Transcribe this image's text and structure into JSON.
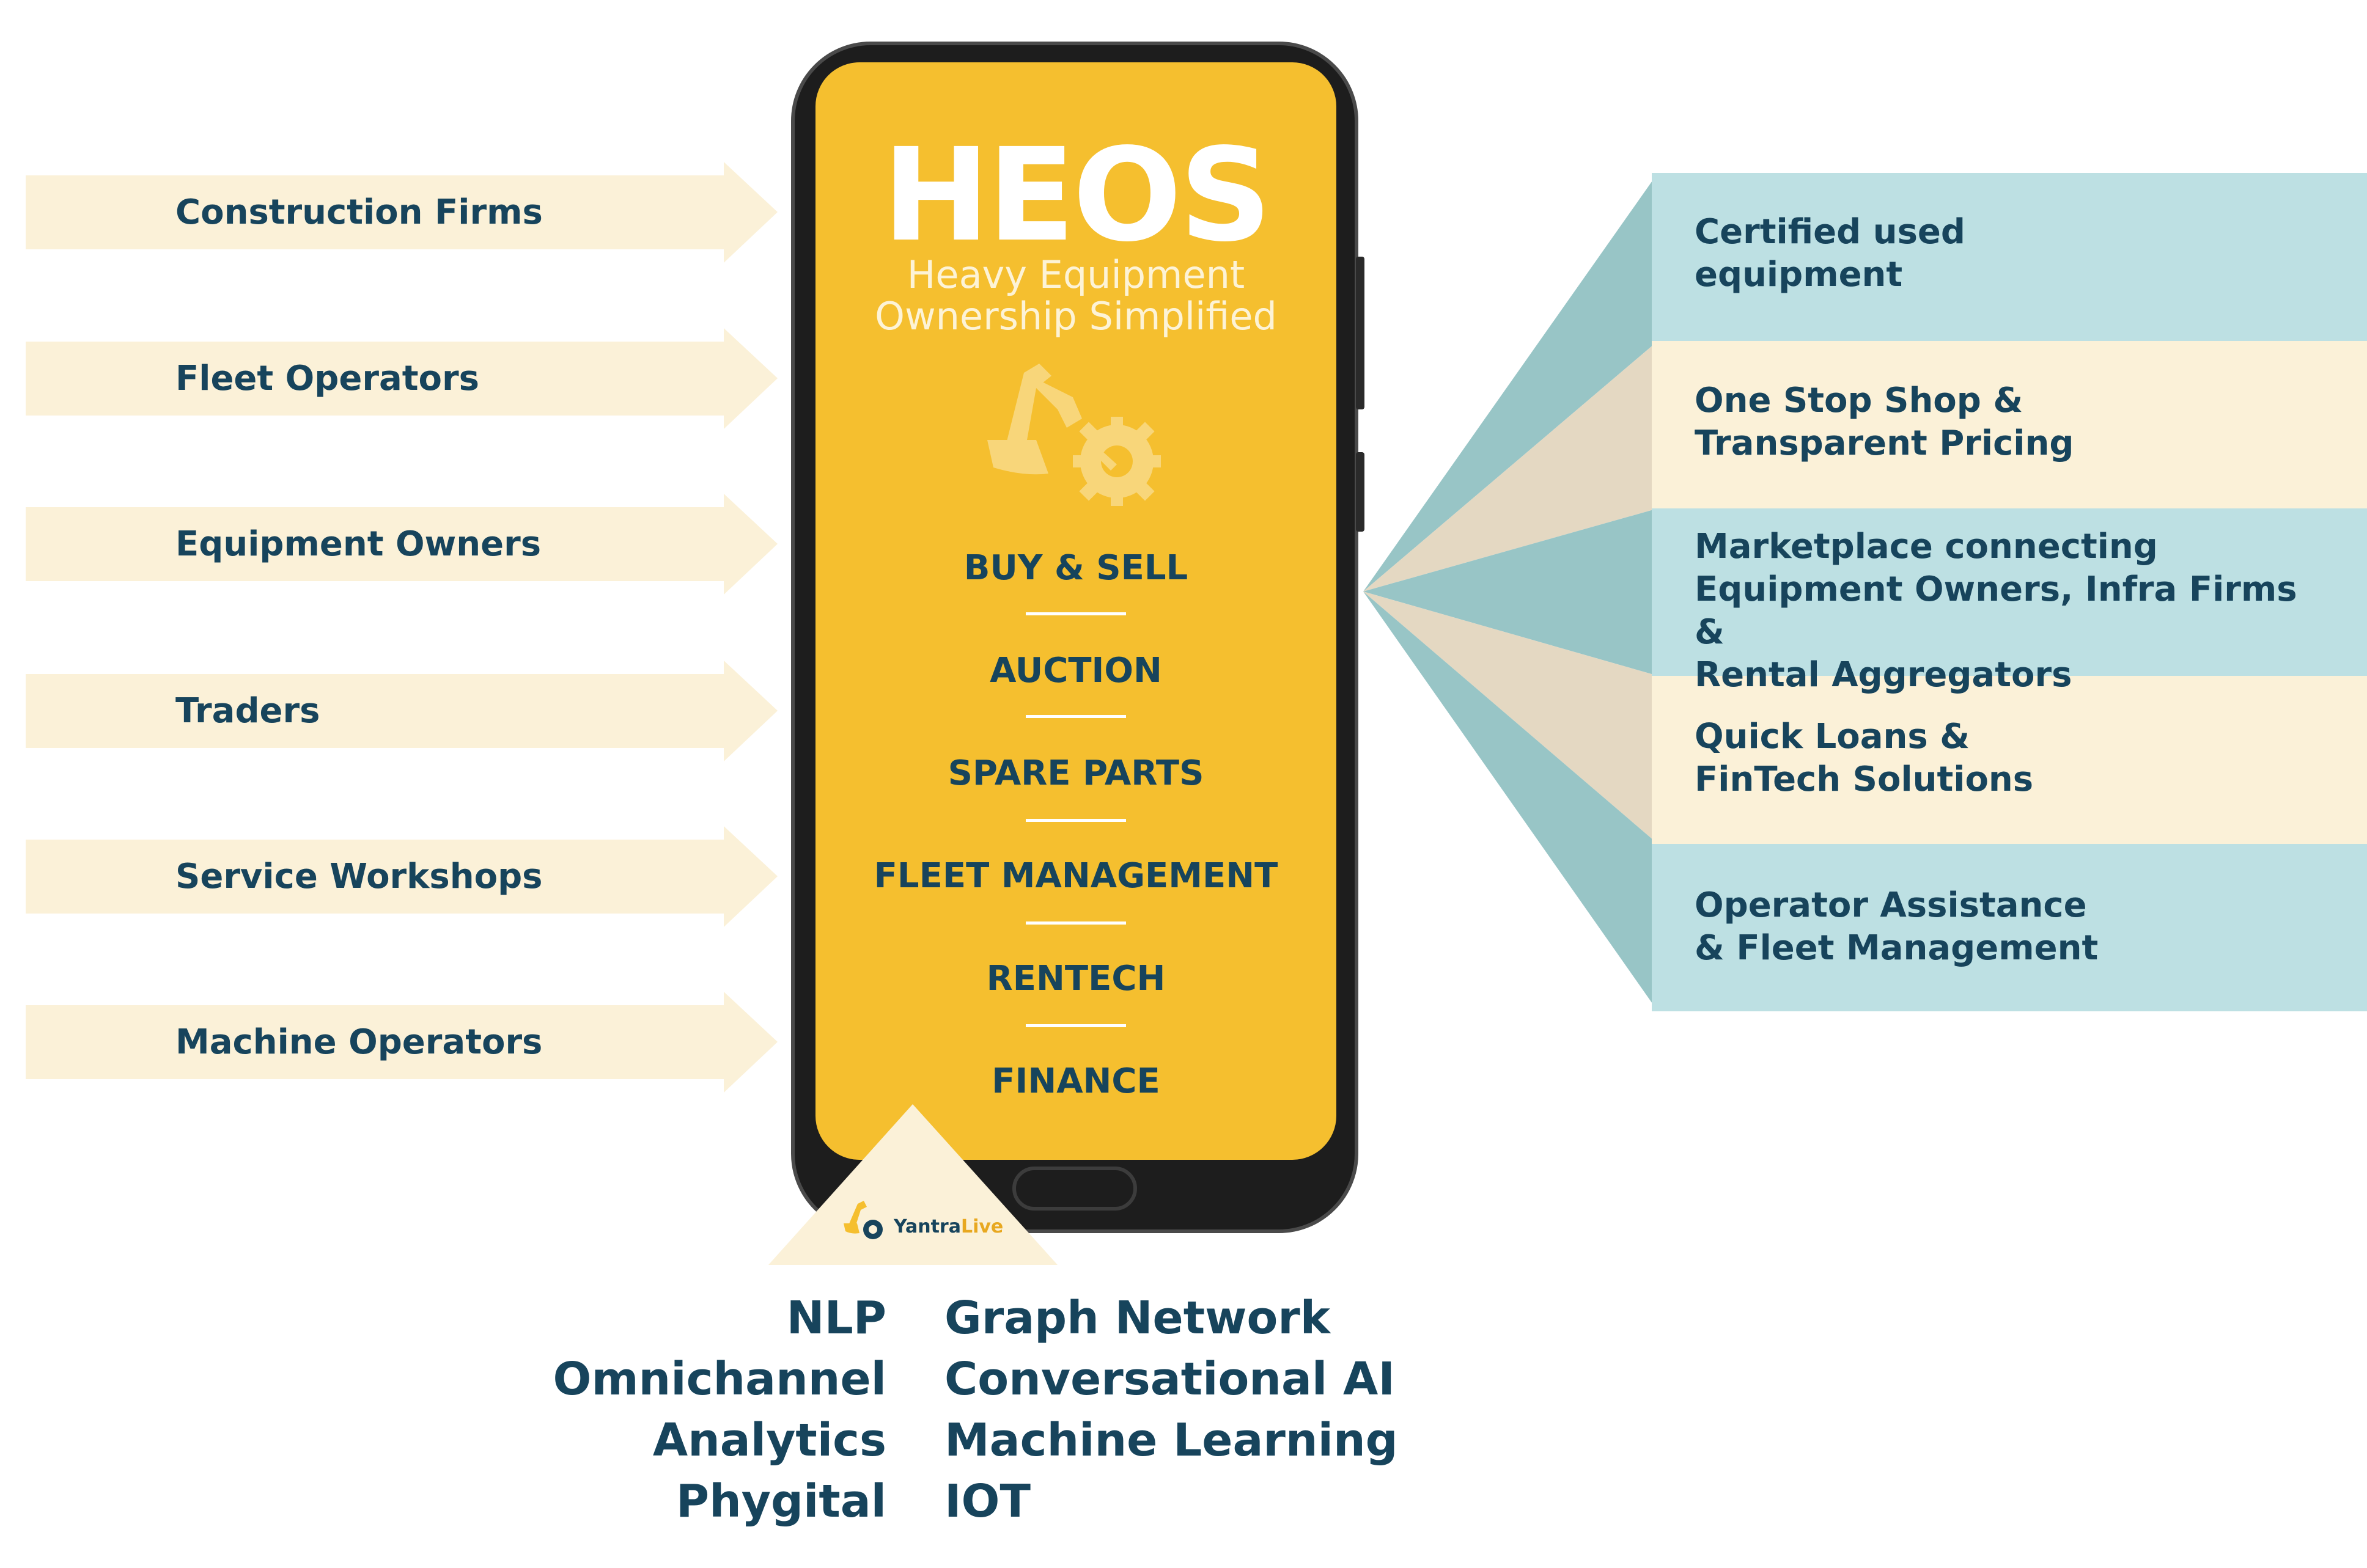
{
  "colors": {
    "navy": "#17445c",
    "phone_yellow": "#f5bf2f",
    "cream": "#fbf1d8",
    "teal_light": "#bde0e3",
    "teal_dark": "#98c5c6",
    "sand": "#e4d8c2"
  },
  "segments": [
    {
      "label": "Construction Firms"
    },
    {
      "label": "Fleet Operators"
    },
    {
      "label": "Equipment Owners"
    },
    {
      "label": "Traders"
    },
    {
      "label": "Service Workshops"
    },
    {
      "label": "Machine Operators"
    }
  ],
  "phone": {
    "title": "HEOS",
    "subtitle_line1": "Heavy Equipment",
    "subtitle_line2": "Ownership Simplified",
    "icon": "excavator-gear-icon",
    "menu": [
      "BUY & SELL",
      "AUCTION",
      "SPARE PARTS",
      "FLEET MANAGEMENT",
      "RENTECH",
      "FINANCE"
    ]
  },
  "features": [
    {
      "text": "Certified used\nequipment"
    },
    {
      "text": "One Stop Shop &\nTransparent Pricing"
    },
    {
      "text": "Marketplace connecting\nEquipment Owners, Infra Firms &\nRental Aggregators"
    },
    {
      "text": "Quick Loans &\nFinTech Solutions"
    },
    {
      "text": "Operator Assistance\n& Fleet Management"
    }
  ],
  "logo": {
    "part1": "Yantra",
    "part2": "Live",
    "icon": "excavator-gear-icon"
  },
  "tech": {
    "left": [
      "NLP",
      "Omnichannel",
      "Analytics",
      "Phygital"
    ],
    "right": [
      "Graph Network",
      "Conversational AI",
      "Machine Learning",
      "IOT"
    ]
  }
}
